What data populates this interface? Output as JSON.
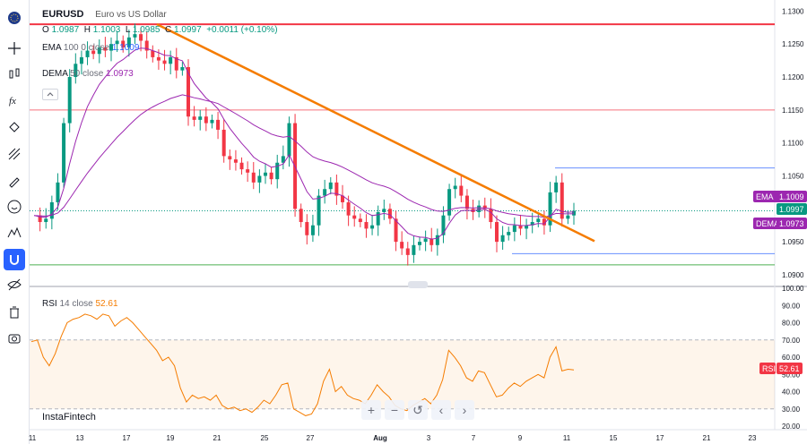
{
  "symbol": {
    "ticker": "EURUSD",
    "description": "Euro vs US Dollar",
    "o_label": "O",
    "o": "1.0987",
    "h_label": "H",
    "h": "1.1003",
    "l_label": "L",
    "l": "1.0985",
    "c_label": "C",
    "c": "1.0997",
    "change": "+0.0011 (+0.10%)"
  },
  "indicators": {
    "ema": {
      "name": "EMA",
      "params": "100 0 close",
      "value": "1.1009",
      "tag": "EMA"
    },
    "dema": {
      "name": "DEMA",
      "params": "50 close",
      "value": "1.0973",
      "tag": "DEMA"
    },
    "last_price": "1.0997",
    "rsi": {
      "name": "RSI",
      "params": "14 close",
      "value": "52.61",
      "tag": "RSI"
    }
  },
  "brand": "InstaFintech",
  "toolbar_icons": [
    "flag-icon",
    "crosshair-icon",
    "candles-icon",
    "fx-icon",
    "nodes-icon",
    "lines-icon",
    "brush-icon",
    "smiley-icon",
    "pattern-icon",
    "magnet-icon",
    "eye-icon",
    "trash-icon",
    "camera-icon"
  ],
  "nav_buttons": [
    "+",
    "−",
    "↺",
    "‹",
    "›"
  ],
  "colors": {
    "up": "#089981",
    "down": "#f23645",
    "ema": "#9c27b0",
    "dema": "#9c27b0",
    "trendline": "#f57c00",
    "resistance": "#f23645",
    "support": "#4caf50",
    "rsi": "#f57c00"
  },
  "chart_data": [
    {
      "type": "candlestick",
      "title": "EURUSD",
      "y_ticks": [
        "1.1300",
        "1.1250",
        "1.1200",
        "1.1150",
        "1.1100",
        "1.1050",
        "1.1000",
        "1.0950",
        "1.0900"
      ],
      "ylim": [
        1.0885,
        1.131
      ],
      "x_ticks": [
        "11",
        "13",
        "17",
        "19",
        "21",
        "25",
        "27",
        "Aug",
        "3",
        "7",
        "9",
        "11",
        "15",
        "17",
        "21",
        "23"
      ],
      "close_series": [
        1.099,
        1.098,
        1.0985,
        1.101,
        1.104,
        1.113,
        1.12,
        1.122,
        1.123,
        1.124,
        1.1235,
        1.1245,
        1.124,
        1.125,
        1.1255,
        1.1245,
        1.126,
        1.1265,
        1.1255,
        1.124,
        1.123,
        1.1225,
        1.122,
        1.123,
        1.121,
        1.1215,
        1.114,
        1.1135,
        1.114,
        1.113,
        1.1135,
        1.112,
        1.108,
        1.1075,
        1.107,
        1.106,
        1.1055,
        1.104,
        1.105,
        1.1055,
        1.1045,
        1.107,
        1.108,
        1.113,
        1.1,
        1.098,
        1.096,
        1.0975,
        1.102,
        1.103,
        1.104,
        1.102,
        1.101,
        1.099,
        1.0985,
        1.098,
        1.097,
        1.0975,
        1.0995,
        1.1,
        1.0985,
        1.095,
        1.094,
        1.093,
        1.0945,
        1.095,
        1.0955,
        1.0945,
        1.096,
        1.099,
        1.103,
        1.1035,
        1.102,
        1.1,
        1.0995,
        1.1005,
        1.1,
        1.098,
        1.095,
        1.096,
        1.0965,
        1.0975,
        1.097,
        1.0975,
        1.098,
        1.0985,
        1.0975,
        1.1025,
        1.104,
        1.0985,
        1.099,
        1.0997
      ],
      "resistance": 1.128,
      "level_2": 1.115,
      "support": 1.0915,
      "box_high": 1.1062,
      "box_low": 1.0932,
      "ema_100": 1.1009,
      "dema_50": 1.0973
    },
    {
      "type": "line",
      "title": "RSI 14 close",
      "y_ticks": [
        "100.00",
        "90.00",
        "80.00",
        "70.00",
        "60.00",
        "50.00",
        "40.00",
        "30.00",
        "20.00"
      ],
      "ylim": [
        20,
        100
      ],
      "bands": [
        30,
        70
      ],
      "values": [
        69,
        70,
        60,
        55,
        62,
        72,
        80,
        82,
        83,
        85,
        84,
        82,
        85,
        84,
        78,
        81,
        83,
        80,
        76,
        72,
        68,
        64,
        58,
        60,
        55,
        42,
        34,
        38,
        36,
        37,
        35,
        38,
        32,
        30,
        31,
        29,
        30,
        28,
        31,
        35,
        33,
        38,
        44,
        45,
        30,
        28,
        26,
        27,
        33,
        46,
        53,
        40,
        43,
        38,
        36,
        35,
        33,
        38,
        44,
        40,
        37,
        32,
        30,
        29,
        32,
        34,
        36,
        33,
        38,
        47,
        64,
        60,
        55,
        48,
        46,
        52,
        51,
        44,
        37,
        38,
        42,
        45,
        43,
        46,
        48,
        50,
        48,
        60,
        66,
        52,
        53,
        52.61
      ]
    }
  ]
}
